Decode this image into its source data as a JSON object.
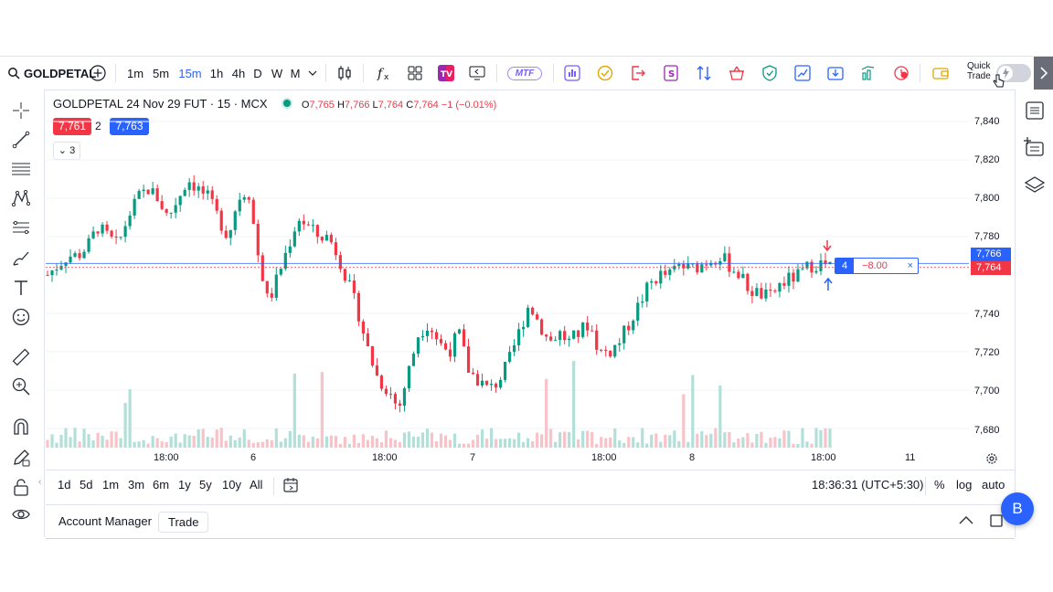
{
  "toolbar": {
    "symbol": "GOLDPETAL",
    "intervals": [
      "1m",
      "5m",
      "15m",
      "1h",
      "4h",
      "D",
      "W",
      "M"
    ],
    "active_interval": "15m",
    "mtf_label": "MTF",
    "quick_trade_label_1": "Quick",
    "quick_trade_label_2": "Trade",
    "accent": "#2962ff"
  },
  "legend": {
    "title": "GOLDPETAL 24 Nov 29 FUT · 15 · MCX",
    "o_label": "O",
    "o_val": "7,765",
    "h_label": "H",
    "h_val": "7,766",
    "l_label": "L",
    "l_val": "7,764",
    "c_label": "C",
    "c_val": "7,764",
    "change": "−1 (−0.01%)",
    "sell_price": "7,761",
    "spread": "2",
    "buy_price": "7,763",
    "indicators_count": "3"
  },
  "order_line": {
    "qty": "4",
    "pnl": "−8.00",
    "close": "×"
  },
  "price_axis": {
    "labels": [
      "7,840",
      "7,820",
      "7,800",
      "7,780",
      "7,740",
      "7,720",
      "7,700",
      "7,680"
    ],
    "last_buy": "7,766",
    "last_sell": "7,764"
  },
  "time_axis": {
    "labels": [
      "18:00",
      "6",
      "18:00",
      "7",
      "18:00",
      "8",
      "18:00",
      "11"
    ]
  },
  "range_bar": {
    "ranges": [
      "1d",
      "5d",
      "1m",
      "3m",
      "6m",
      "1y",
      "5y",
      "10y",
      "All"
    ],
    "clock": "18:36:31 (UTC+5:30)",
    "percent": "%",
    "log": "log",
    "auto": "auto"
  },
  "bottom_panel": {
    "account_manager": "Account Manager",
    "trade": "Trade"
  },
  "avatar": "B",
  "colors": {
    "up": "#089981",
    "down": "#f23645",
    "buy": "#2962ff",
    "sell": "#f23645"
  },
  "chart_data": {
    "type": "candlestick",
    "ylim": [
      7670,
      7850
    ],
    "y_ticks": [
      7680,
      7700,
      7720,
      7740,
      7780,
      7800,
      7820,
      7840
    ],
    "price_line": 7766,
    "close_points": [
      7760,
      7765,
      7770,
      7770,
      7775,
      7785,
      7780,
      7775,
      7790,
      7800,
      7805,
      7800,
      7790,
      7800,
      7810,
      7805,
      7800,
      7790,
      7780,
      7800,
      7805,
      7770,
      7745,
      7760,
      7775,
      7790,
      7785,
      7780,
      7780,
      7770,
      7755,
      7740,
      7720,
      7705,
      7700,
      7690,
      7710,
      7730,
      7735,
      7725,
      7720,
      7730,
      7710,
      7705,
      7700,
      7705,
      7715,
      7730,
      7745,
      7735,
      7725,
      7730,
      7725,
      7730,
      7735,
      7720,
      7720,
      7725,
      7735,
      7745,
      7755,
      7760,
      7760,
      7765,
      7763,
      7765,
      7768,
      7770,
      7765,
      7760,
      7752,
      7750,
      7748,
      7755,
      7758,
      7760,
      7765,
      7766,
      7764
    ]
  }
}
